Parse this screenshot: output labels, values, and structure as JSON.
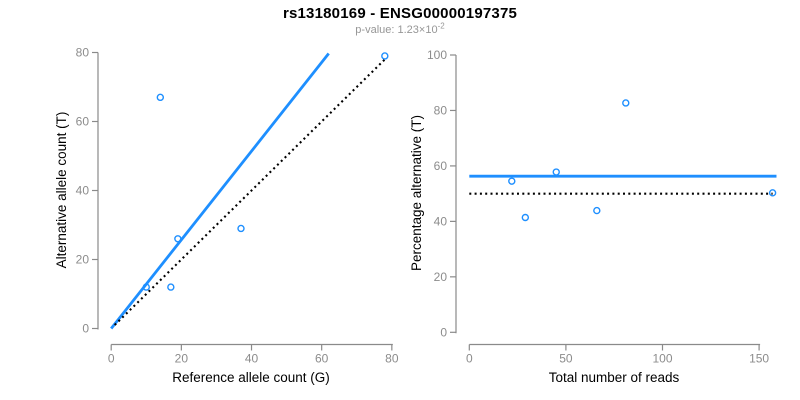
{
  "header": {
    "title": "rs13180169 - ENSG00000197375",
    "subtitle_prefix": "p-value: 1.23×10",
    "subtitle_exponent": "-2"
  },
  "colors": {
    "accent_blue": "#1E8FFF",
    "axis_gray": "#8A8A8A",
    "tick_label_gray": "#8C8C8C",
    "subtitle_gray": "#969696",
    "text_black": "#000000"
  },
  "chart_data": [
    {
      "type": "scatter",
      "title": "",
      "xlabel": "Reference allele count (G)",
      "ylabel": "Alternative allele count (T)",
      "xlim": [
        0,
        80
      ],
      "ylim": [
        0,
        80
      ],
      "xticks": [
        0,
        20,
        40,
        60,
        80
      ],
      "yticks": [
        0,
        20,
        40,
        60,
        80
      ],
      "grid": false,
      "points": [
        [
          14,
          67
        ],
        [
          78,
          79
        ],
        [
          37,
          29
        ],
        [
          19,
          26
        ],
        [
          10,
          12
        ],
        [
          17,
          12
        ]
      ],
      "lines": [
        {
          "name": "regression-line",
          "style": "solid",
          "color": "#1E8FFF",
          "x1": 0,
          "y1": 0,
          "x2": 62,
          "y2": 79.7
        },
        {
          "name": "identity-line",
          "style": "dotted",
          "color": "#000000",
          "x1": 1,
          "y1": 1,
          "x2": 78.5,
          "y2": 78.5
        }
      ]
    },
    {
      "type": "scatter",
      "title": "",
      "xlabel": "Total number of reads",
      "ylabel": "Percentage alternative (T)",
      "xlim": [
        0,
        159
      ],
      "ylim": [
        0,
        100
      ],
      "xticks": [
        0,
        50,
        100,
        150
      ],
      "yticks": [
        0,
        20,
        40,
        60,
        80,
        100
      ],
      "grid": false,
      "points": [
        [
          81,
          82.7
        ],
        [
          157,
          50.3
        ],
        [
          66,
          43.9
        ],
        [
          45,
          57.8
        ],
        [
          22,
          54.5
        ],
        [
          29,
          41.4
        ]
      ],
      "lines": [
        {
          "name": "mean-percentage-line",
          "style": "solid",
          "color": "#1E8FFF",
          "x1": 0,
          "y1": 56.3,
          "x2": 159,
          "y2": 56.3
        },
        {
          "name": "expected-50-percent-line",
          "style": "dotted",
          "color": "#000000",
          "x1": 0,
          "y1": 50,
          "x2": 157,
          "y2": 50
        }
      ]
    }
  ]
}
